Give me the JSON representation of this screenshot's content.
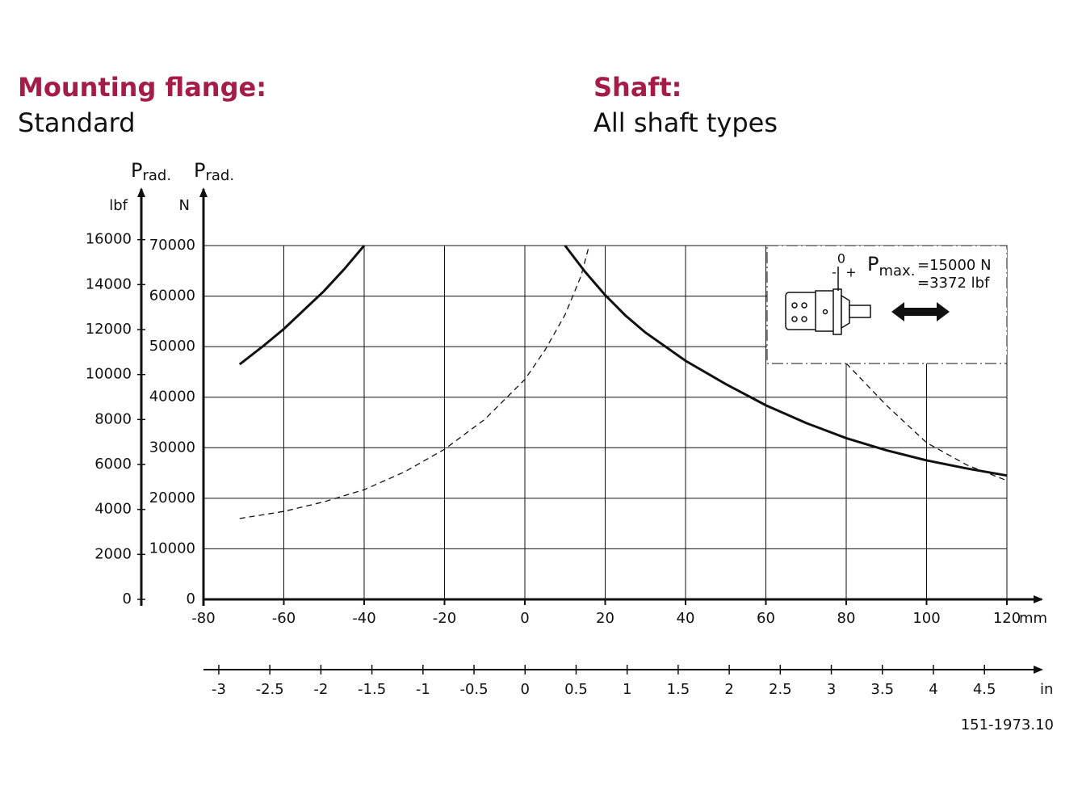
{
  "chart_data": {
    "type": "line",
    "headings": [
      {
        "label": "Mounting flange:",
        "value": "Standard"
      },
      {
        "label": "Shaft:",
        "value": "All shaft types"
      }
    ],
    "y_label": {
      "symbol": "P",
      "subscript": "rad.",
      "unit": "N"
    },
    "y2_label": {
      "symbol": "P",
      "subscript": "rad.",
      "unit": "lbf"
    },
    "x_unit": "mm",
    "x2_unit": "in",
    "xlim": [
      -80,
      120
    ],
    "xticks": [
      -80,
      -60,
      -40,
      -20,
      0,
      20,
      40,
      60,
      80,
      100,
      120
    ],
    "x2lim": [
      -3.15,
      4.72
    ],
    "x2ticks": [
      -3,
      -2.5,
      -2,
      -1.5,
      -1,
      -0.5,
      0,
      0.5,
      1,
      1.5,
      2,
      2.5,
      3,
      3.5,
      4,
      4.5
    ],
    "ylim": [
      0,
      70000
    ],
    "yticks": [
      0,
      10000,
      20000,
      30000,
      40000,
      50000,
      60000,
      70000
    ],
    "y2lim": [
      0,
      15737
    ],
    "y2ticks": [
      0,
      2000,
      4000,
      6000,
      8000,
      10000,
      12000,
      14000,
      16000
    ],
    "grid": true,
    "series": [
      {
        "color": "#111111",
        "style": "solid",
        "x": [
          -71,
          -65,
          -60,
          -56,
          -50,
          -45,
          -40
        ],
        "values": [
          46500,
          50200,
          53500,
          56500,
          61000,
          65300,
          70000
        ]
      },
      {
        "color": "#111111",
        "style": "solid",
        "x": [
          10,
          15,
          20,
          25,
          30,
          40,
          50,
          60,
          70,
          80,
          90,
          100,
          110,
          120
        ],
        "values": [
          70000,
          64800,
          60200,
          56200,
          52800,
          47200,
          42600,
          38400,
          34900,
          31900,
          29500,
          27500,
          25900,
          24500
        ]
      },
      {
        "color": "#111111",
        "style": "dashed",
        "x": [
          -71,
          -60,
          -50,
          -40,
          -30,
          -20,
          -10,
          0,
          5,
          10,
          14,
          16,
          70,
          80,
          90,
          100,
          110,
          120
        ],
        "values": [
          16000,
          17400,
          19300,
          21700,
          25200,
          29700,
          35600,
          43500,
          49300,
          56300,
          64000,
          70000,
          null,
          46700,
          38400,
          31000,
          26600,
          23500
        ]
      }
    ],
    "inset": {
      "zero": "0",
      "minus": "-",
      "plus": "+",
      "symbol": "P",
      "subscript": "max.",
      "lines": [
        "=15000 N",
        "=3372 lbf"
      ]
    },
    "figure_id": "151-1973.10"
  }
}
